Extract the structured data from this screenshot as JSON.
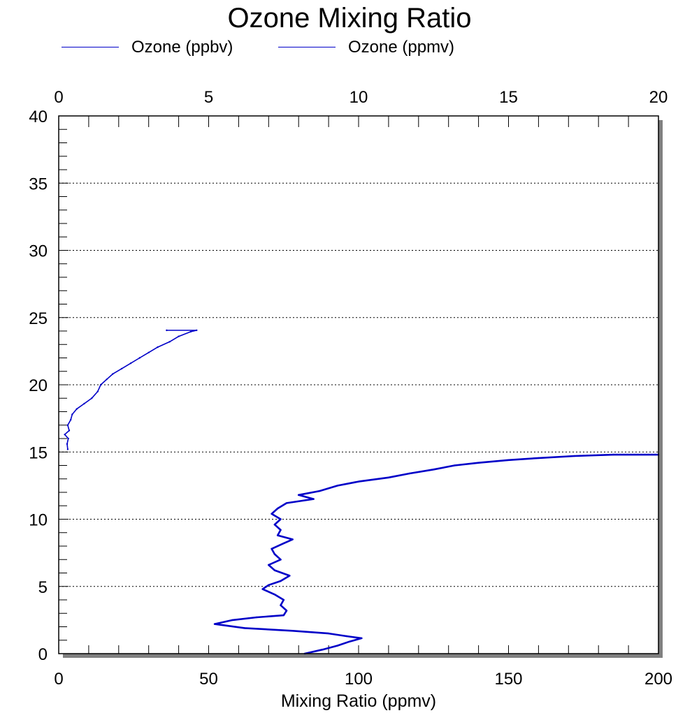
{
  "chart_data": {
    "type": "line",
    "title": "Ozone Mixing Ratio",
    "xlabel": "Mixing Ratio (ppmv)",
    "ylabel": "",
    "xlim": [
      0,
      200
    ],
    "ylim": [
      0,
      40
    ],
    "x2lim": [
      0,
      20
    ],
    "x_ticks": [
      "0",
      "50",
      "100",
      "150",
      "200"
    ],
    "x2_ticks": [
      "0",
      "5",
      "10",
      "15",
      "20"
    ],
    "y_ticks": [
      "0",
      "5",
      "10",
      "15",
      "20",
      "25",
      "30",
      "35",
      "40"
    ],
    "grid": "dotted horizontal at y ticks",
    "legend_position": "top",
    "series": [
      {
        "name": "Ozone (ppbv)",
        "axis": "top",
        "color": "#0000c8",
        "points": [
          [
            0.3,
            15.2
          ],
          [
            0.28,
            15.6
          ],
          [
            0.32,
            16.0
          ],
          [
            0.2,
            16.3
          ],
          [
            0.35,
            16.6
          ],
          [
            0.3,
            17.0
          ],
          [
            0.4,
            17.4
          ],
          [
            0.45,
            17.8
          ],
          [
            0.6,
            18.2
          ],
          [
            0.85,
            18.6
          ],
          [
            1.1,
            19.0
          ],
          [
            1.3,
            19.5
          ],
          [
            1.4,
            20.0
          ],
          [
            1.6,
            20.4
          ],
          [
            1.8,
            20.8
          ],
          [
            2.1,
            21.2
          ],
          [
            2.4,
            21.6
          ],
          [
            2.7,
            22.0
          ],
          [
            3.0,
            22.4
          ],
          [
            3.3,
            22.8
          ],
          [
            3.7,
            23.2
          ],
          [
            4.0,
            23.6
          ],
          [
            4.4,
            23.95
          ],
          [
            4.6,
            24.05
          ],
          [
            3.6,
            24.05
          ]
        ]
      },
      {
        "name": "Ozone (ppmv)",
        "axis": "bottom",
        "color": "#0000c8",
        "points": [
          [
            82,
            0.0
          ],
          [
            88,
            0.3
          ],
          [
            93,
            0.6
          ],
          [
            97,
            0.9
          ],
          [
            101,
            1.15
          ],
          [
            96,
            1.3
          ],
          [
            90,
            1.5
          ],
          [
            78,
            1.7
          ],
          [
            62,
            1.9
          ],
          [
            52,
            2.2
          ],
          [
            58,
            2.5
          ],
          [
            66,
            2.7
          ],
          [
            75,
            2.85
          ],
          [
            76,
            3.2
          ],
          [
            74,
            3.6
          ],
          [
            75,
            4.0
          ],
          [
            72,
            4.4
          ],
          [
            68,
            4.8
          ],
          [
            70,
            5.1
          ],
          [
            74,
            5.4
          ],
          [
            77,
            5.8
          ],
          [
            72,
            6.2
          ],
          [
            70,
            6.6
          ],
          [
            74,
            7.0
          ],
          [
            72,
            7.4
          ],
          [
            71,
            7.8
          ],
          [
            75,
            8.2
          ],
          [
            78,
            8.5
          ],
          [
            73,
            8.8
          ],
          [
            74,
            9.2
          ],
          [
            72,
            9.6
          ],
          [
            74,
            10.0
          ],
          [
            71,
            10.4
          ],
          [
            73,
            10.8
          ],
          [
            76,
            11.2
          ],
          [
            85,
            11.5
          ],
          [
            80,
            11.8
          ],
          [
            87,
            12.1
          ],
          [
            93,
            12.5
          ],
          [
            100,
            12.8
          ],
          [
            110,
            13.1
          ],
          [
            117,
            13.4
          ],
          [
            125,
            13.7
          ],
          [
            132,
            14.0
          ],
          [
            140,
            14.2
          ],
          [
            150,
            14.4
          ],
          [
            160,
            14.55
          ],
          [
            172,
            14.7
          ],
          [
            185,
            14.8
          ],
          [
            200,
            14.8
          ]
        ]
      }
    ]
  }
}
